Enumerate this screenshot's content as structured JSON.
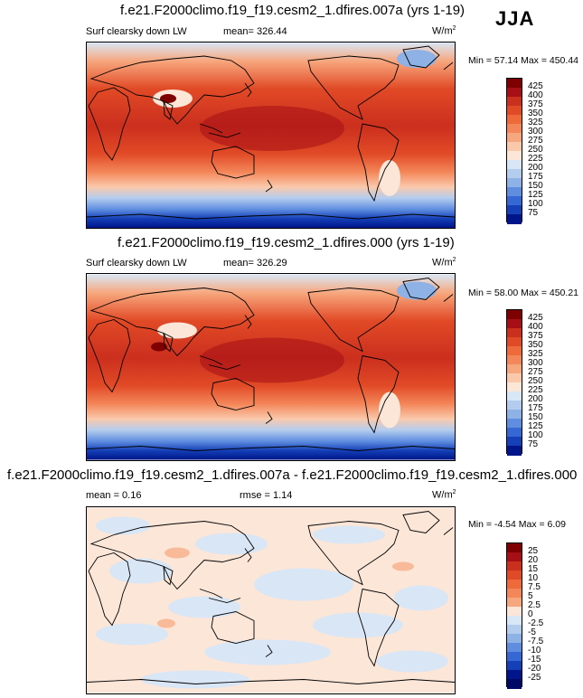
{
  "season": "JJA",
  "panels": [
    {
      "title": "f.e21.F2000climo.f19_f19.cesm2_1.dfires.007a (yrs 1-19)",
      "left_label": "Surf clearsky down LW",
      "center_label": "mean= 326.44",
      "units": "W/m",
      "units_exp": "2",
      "minmax": "Min =  57.14 Max = 450.44",
      "type": "field"
    },
    {
      "title": "f.e21.F2000climo.f19_f19.cesm2_1.dfires.000 (yrs 1-19)",
      "left_label": "Surf clearsky down LW",
      "center_label": "mean= 326.29",
      "units": "W/m",
      "units_exp": "2",
      "minmax": "Min =  58.00 Max = 450.21",
      "type": "field"
    },
    {
      "title": "f.e21.F2000climo.f19_f19.cesm2_1.dfires.007a - f.e21.F2000climo.f19_f19.cesm2_1.dfires.000",
      "left_label": "mean =   0.16",
      "center_label": "rmse =   1.14",
      "units": "W/m",
      "units_exp": "2",
      "minmax": "Min =  -4.54 Max =   6.09",
      "type": "diff"
    }
  ],
  "colorbars": {
    "field": {
      "labels": [
        "425",
        "400",
        "375",
        "350",
        "325",
        "300",
        "275",
        "250",
        "225",
        "200",
        "175",
        "150",
        "125",
        "100",
        "75"
      ],
      "colors": [
        "#7f0000",
        "#a50f15",
        "#cb2f1e",
        "#e14a26",
        "#ef6a3a",
        "#f4875a",
        "#f7a77e",
        "#fac9ac",
        "#fbe6d8",
        "#d9e6f5",
        "#b4cdee",
        "#8fb2e6",
        "#5f8ee0",
        "#3568d4",
        "#1540b8",
        "#00158a"
      ]
    },
    "diff": {
      "labels": [
        "25",
        "20",
        "15",
        "10",
        "7.5",
        "5",
        "2.5",
        "0",
        "-2.5",
        "-5",
        "-7.5",
        "-10",
        "-15",
        "-20",
        "-25"
      ],
      "colors": [
        "#7f0000",
        "#a50f15",
        "#cb2f1e",
        "#e14a26",
        "#ef6a3a",
        "#f4875a",
        "#f7a77e",
        "#fbe6d8",
        "#d9e6f5",
        "#b4cdee",
        "#8fb2e6",
        "#5f8ee0",
        "#3568d4",
        "#1540b8",
        "#00158a",
        "#000a66"
      ]
    }
  }
}
